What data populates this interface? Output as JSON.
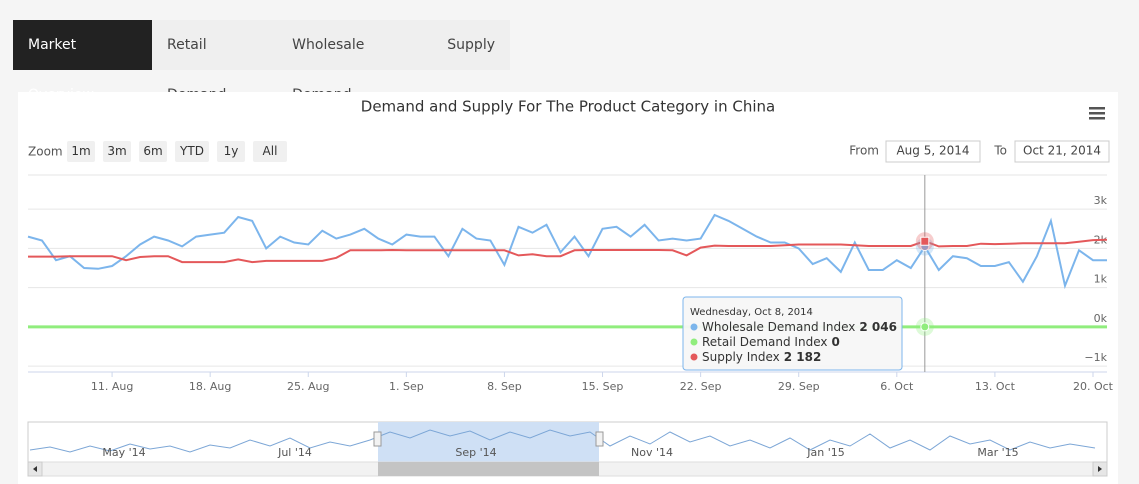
{
  "tabs": [
    "Market Overview",
    "Retail Demand",
    "Wholesale Demand",
    "Supply"
  ],
  "zoom": {
    "label": "Zoom",
    "buttons": [
      "1m",
      "3m",
      "6m",
      "YTD",
      "1y",
      "All"
    ]
  },
  "range": {
    "from_label": "From",
    "from": "Aug 5, 2014",
    "to_label": "To",
    "to": "Oct 21, 2014"
  },
  "navigator": {
    "labels": [
      "May '14",
      "Jul '14",
      "Sep '14",
      "Nov '14",
      "Jan '15",
      "Mar '15"
    ]
  },
  "tooltip": {
    "header": "Wednesday, Oct 8, 2014",
    "value_labels": [
      "2 046",
      "0",
      "2 182"
    ]
  },
  "chart_data": {
    "type": "line",
    "title": "Demand and Supply For The Product Category in China",
    "x": [
      "2014-08-05",
      "2014-08-06",
      "2014-08-07",
      "2014-08-08",
      "2014-08-09",
      "2014-08-10",
      "2014-08-11",
      "2014-08-12",
      "2014-08-13",
      "2014-08-14",
      "2014-08-15",
      "2014-08-16",
      "2014-08-17",
      "2014-08-18",
      "2014-08-19",
      "2014-08-20",
      "2014-08-21",
      "2014-08-22",
      "2014-08-23",
      "2014-08-24",
      "2014-08-25",
      "2014-08-26",
      "2014-08-27",
      "2014-08-28",
      "2014-08-29",
      "2014-08-30",
      "2014-08-31",
      "2014-09-01",
      "2014-09-02",
      "2014-09-03",
      "2014-09-04",
      "2014-09-05",
      "2014-09-06",
      "2014-09-07",
      "2014-09-08",
      "2014-09-09",
      "2014-09-10",
      "2014-09-11",
      "2014-09-12",
      "2014-09-13",
      "2014-09-14",
      "2014-09-15",
      "2014-09-16",
      "2014-09-17",
      "2014-09-18",
      "2014-09-19",
      "2014-09-20",
      "2014-09-21",
      "2014-09-22",
      "2014-09-23",
      "2014-09-24",
      "2014-09-25",
      "2014-09-26",
      "2014-09-27",
      "2014-09-28",
      "2014-09-29",
      "2014-09-30",
      "2014-10-01",
      "2014-10-02",
      "2014-10-03",
      "2014-10-04",
      "2014-10-05",
      "2014-10-06",
      "2014-10-07",
      "2014-10-08",
      "2014-10-09",
      "2014-10-10",
      "2014-10-11",
      "2014-10-12",
      "2014-10-13",
      "2014-10-14",
      "2014-10-15",
      "2014-10-16",
      "2014-10-17",
      "2014-10-18",
      "2014-10-19",
      "2014-10-20",
      "2014-10-21"
    ],
    "series": [
      {
        "name": "Wholesale Demand Index",
        "color": "#7cb5ec",
        "values": [
          2300,
          2200,
          1700,
          1800,
          1500,
          1480,
          1550,
          1800,
          2100,
          2300,
          2200,
          2050,
          2300,
          2350,
          2400,
          2800,
          2700,
          2000,
          2300,
          2150,
          2100,
          2450,
          2250,
          2350,
          2500,
          2250,
          2100,
          2350,
          2300,
          2300,
          1800,
          2500,
          2250,
          2200,
          1580,
          2550,
          2400,
          2600,
          1900,
          2300,
          1800,
          2500,
          2550,
          2300,
          2600,
          2200,
          2250,
          2200,
          2250,
          2850,
          2700,
          2500,
          2300,
          2150,
          2150,
          2000,
          1600,
          1750,
          1400,
          2150,
          1450,
          1450,
          1700,
          1500,
          2046,
          1450,
          1800,
          1750,
          1550,
          1550,
          1650,
          1150,
          1800,
          2700,
          1050,
          1950,
          1700,
          1700
        ]
      },
      {
        "name": "Retail Demand Index",
        "color": "#90ed7d",
        "values": [
          0,
          0,
          0,
          0,
          0,
          0,
          0,
          0,
          0,
          0,
          0,
          0,
          0,
          0,
          0,
          0,
          0,
          0,
          0,
          0,
          0,
          0,
          0,
          0,
          0,
          0,
          0,
          0,
          0,
          0,
          0,
          0,
          0,
          0,
          0,
          0,
          0,
          0,
          0,
          0,
          0,
          0,
          0,
          0,
          0,
          0,
          0,
          0,
          0,
          0,
          0,
          0,
          0,
          0,
          0,
          0,
          0,
          0,
          0,
          0,
          0,
          0,
          0,
          0,
          0,
          0,
          0,
          0,
          0,
          0,
          0,
          0,
          0,
          0,
          0,
          0,
          0,
          0
        ]
      },
      {
        "name": "Supply Index",
        "color": "#e4585a",
        "values": [
          1790,
          1790,
          1790,
          1800,
          1800,
          1800,
          1800,
          1700,
          1780,
          1800,
          1800,
          1650,
          1650,
          1650,
          1650,
          1720,
          1650,
          1680,
          1680,
          1680,
          1680,
          1680,
          1760,
          1950,
          1950,
          1950,
          1960,
          1950,
          1950,
          1950,
          1950,
          1950,
          1950,
          1950,
          1950,
          1820,
          1850,
          1800,
          1800,
          1950,
          1960,
          1960,
          1960,
          1960,
          1960,
          1960,
          1950,
          1820,
          2020,
          2070,
          2060,
          2060,
          2060,
          2060,
          2080,
          2100,
          2100,
          2100,
          2100,
          2080,
          2060,
          2060,
          2060,
          2060,
          2182,
          2050,
          2060,
          2060,
          2120,
          2110,
          2120,
          2130,
          2130,
          2130,
          2130,
          2170,
          2210,
          2220
        ]
      }
    ],
    "xlim": [
      "2014-08-05",
      "2014-10-21"
    ],
    "xticks": [
      {
        "value": "2014-08-11",
        "label": "11. Aug"
      },
      {
        "value": "2014-08-18",
        "label": "18. Aug"
      },
      {
        "value": "2014-08-25",
        "label": "25. Aug"
      },
      {
        "value": "2014-09-01",
        "label": "1. Sep"
      },
      {
        "value": "2014-09-08",
        "label": "8. Sep"
      },
      {
        "value": "2014-09-15",
        "label": "15. Sep"
      },
      {
        "value": "2014-09-22",
        "label": "22. Sep"
      },
      {
        "value": "2014-09-29",
        "label": "29. Sep"
      },
      {
        "value": "2014-10-06",
        "label": "6. Oct"
      },
      {
        "value": "2014-10-13",
        "label": "13. Oct"
      },
      {
        "value": "2014-10-20",
        "label": "20. Oct"
      }
    ],
    "ylim": [
      -1150,
      3870
    ],
    "yticks": [
      {
        "value": -1000,
        "label": "−1k"
      },
      {
        "value": 0,
        "label": "0k"
      },
      {
        "value": 1000,
        "label": "1k"
      },
      {
        "value": 2000,
        "label": "2k"
      },
      {
        "value": 3000,
        "label": "3k"
      }
    ],
    "grid": true
  }
}
